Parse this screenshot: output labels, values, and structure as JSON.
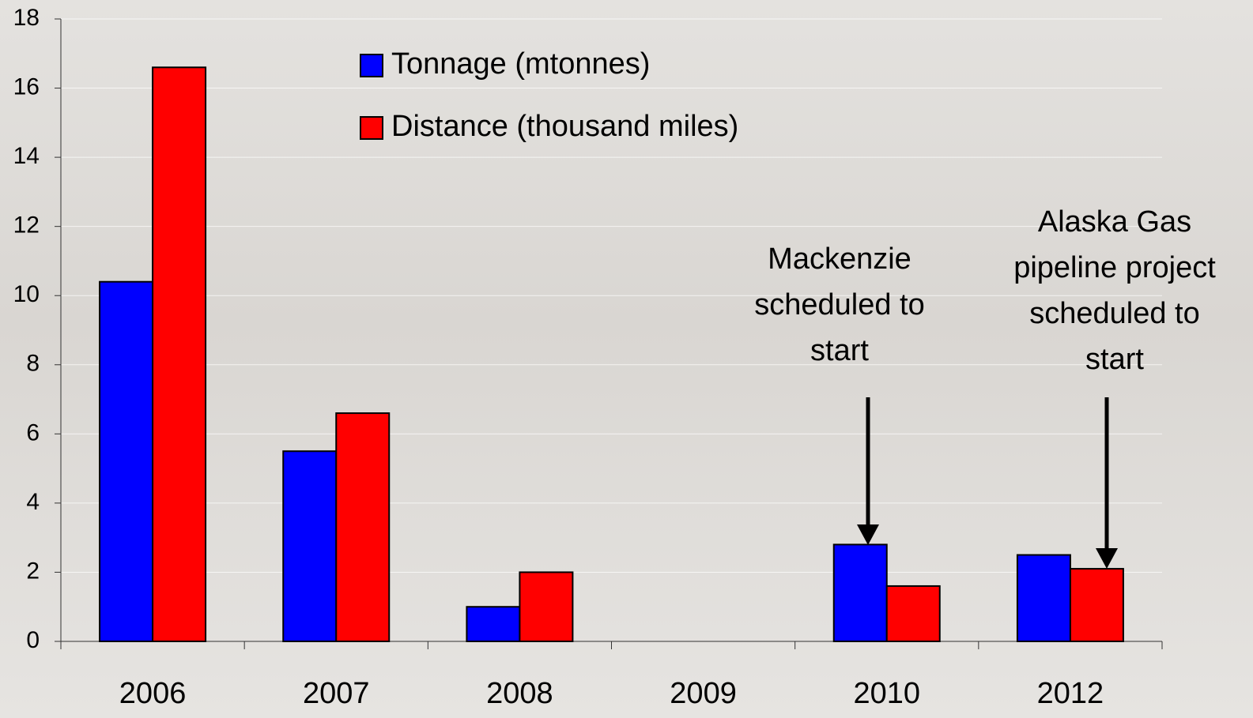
{
  "chart_data": {
    "type": "bar",
    "categories": [
      "2006",
      "2007",
      "2008",
      "2009",
      "2010",
      "2012"
    ],
    "series": [
      {
        "name": "Tonnage (mtonnes)",
        "color": "#0000ff",
        "values": [
          10.4,
          5.5,
          1.0,
          null,
          2.8,
          2.5
        ]
      },
      {
        "name": "Distance (thousand miles)",
        "color": "#ff0000",
        "values": [
          16.6,
          6.6,
          2.0,
          null,
          1.6,
          2.1
        ]
      }
    ],
    "ylim": [
      0,
      18
    ],
    "yticks": [
      0,
      2,
      4,
      6,
      8,
      10,
      12,
      14,
      16,
      18
    ],
    "grid": true,
    "annotations": [
      {
        "lines": [
          "Mackenzie",
          "scheduled to",
          "start"
        ]
      },
      {
        "lines": [
          "Alaska Gas",
          "pipeline project",
          "scheduled to",
          "start"
        ]
      }
    ]
  }
}
